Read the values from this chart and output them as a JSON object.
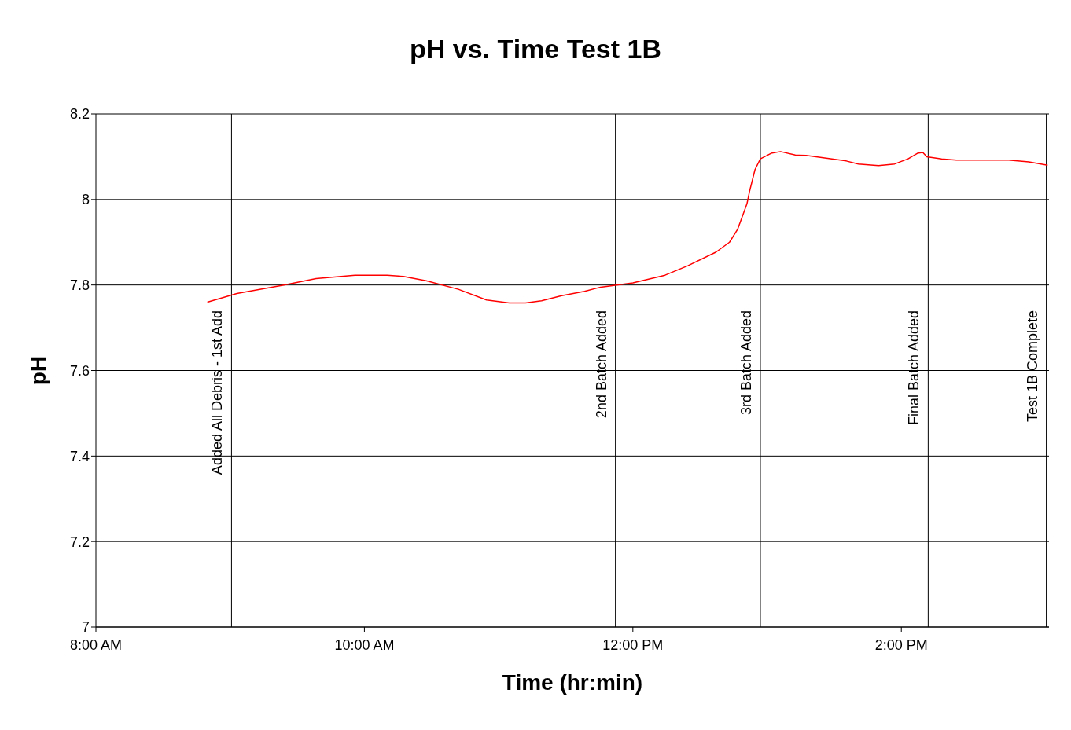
{
  "chart_data": {
    "type": "line",
    "title": "pH vs. Time Test 1B",
    "xlabel": "Time (hr:min)",
    "ylabel": "pH",
    "x": [
      8.83,
      9.05,
      9.4,
      9.64,
      9.93,
      10.17,
      10.29,
      10.46,
      10.7,
      10.91,
      11.08,
      11.2,
      11.32,
      11.47,
      11.64,
      11.76,
      12.0,
      12.24,
      12.41,
      12.62,
      12.72,
      12.78,
      12.85,
      12.87,
      12.91,
      12.95,
      13.03,
      13.1,
      13.21,
      13.29,
      13.59,
      13.68,
      13.83,
      13.95,
      14.05,
      14.12,
      14.16,
      14.19,
      14.3,
      14.41,
      14.8,
      14.95,
      15.09
    ],
    "series": [
      {
        "color": "#ff0000",
        "values": [
          7.76,
          7.78,
          7.8,
          7.815,
          7.823,
          7.823,
          7.82,
          7.81,
          7.79,
          7.765,
          7.758,
          7.758,
          7.763,
          7.775,
          7.785,
          7.795,
          7.805,
          7.823,
          7.845,
          7.877,
          7.9,
          7.93,
          7.99,
          8.02,
          8.07,
          8.095,
          8.108,
          8.112,
          8.104,
          8.103,
          8.09,
          8.083,
          8.079,
          8.083,
          8.095,
          8.108,
          8.11,
          8.1,
          8.095,
          8.092,
          8.092,
          8.088,
          8.08
        ]
      }
    ],
    "xlim": [
      8,
      15.1
    ],
    "xticks": [
      {
        "value": 8,
        "label": "8:00 AM"
      },
      {
        "value": 10,
        "label": "10:00 AM"
      },
      {
        "value": 12,
        "label": "12:00 PM"
      },
      {
        "value": 14,
        "label": "2:00 PM"
      }
    ],
    "ylim": [
      7,
      8.2
    ],
    "yticks": [
      7,
      7.2,
      7.4,
      7.6,
      7.8,
      8,
      8.2
    ],
    "grid": "y",
    "marker": "none",
    "line_style": "solid",
    "ref_lines": [
      {
        "axis": "x",
        "value": 9.01,
        "label": "Added All Debris - 1st Add",
        "color": "#000000"
      },
      {
        "axis": "x",
        "value": 11.87,
        "label": "2nd Batch Added",
        "color": "#000000"
      },
      {
        "axis": "x",
        "value": 12.95,
        "label": "3rd Batch Added",
        "color": "#000000"
      },
      {
        "axis": "x",
        "value": 14.2,
        "label": "Final Batch Added",
        "color": "#000000"
      },
      {
        "axis": "x",
        "value": 15.08,
        "label": "Test 1B Complete",
        "color": "#000000"
      }
    ]
  }
}
